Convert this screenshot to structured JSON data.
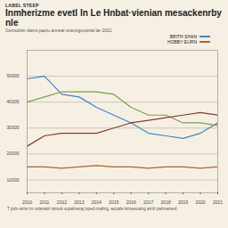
{
  "chart_data": {
    "type": "line",
    "label": "LABEL STEEP",
    "title": "Inmherizme evetl ln Le Hnbat·vienian mesackenrby nle",
    "subtitle": "Gemudsin dams pactu anneal snanngcustrial lar 2021",
    "caption": "T pols wrire inr unlenatrr tanxsk sopalrrecaj ixped nnaling, aucaile kinoesuaing arrdr parimarsed.",
    "x": [
      2010,
      2011,
      2012,
      2013,
      2014,
      2015,
      2016,
      2017,
      2018,
      2019,
      2020,
      2021
    ],
    "xlim": [
      2010,
      2021
    ],
    "xticks": [
      2010,
      2011,
      2012,
      2013,
      2014,
      2015,
      2016,
      2017,
      2018,
      2019,
      2020,
      2021
    ],
    "ylim": [
      5000,
      60000
    ],
    "yticks": [
      10000,
      20000,
      30000,
      40000,
      50000
    ],
    "grid": true,
    "legend": "top-right",
    "series": [
      {
        "name": "BRITH SHAN",
        "color": "#3f86c4",
        "values": [
          49000,
          50000,
          43000,
          42000,
          38000,
          35000,
          32000,
          28000,
          27000,
          26000,
          28000,
          32000
        ]
      },
      {
        "color": "#7aa04a",
        "values": [
          40000,
          42000,
          44000,
          44000,
          44000,
          43000,
          38000,
          35000,
          35000,
          32000,
          32000,
          31000
        ]
      },
      {
        "color": "#8a3a2e",
        "values": [
          23000,
          27000,
          28000,
          28000,
          28000,
          30000,
          32000,
          33000,
          34000,
          35000,
          36000,
          35000
        ]
      },
      {
        "name": "HOBBY EURN",
        "color": "#b4622f",
        "values": [
          15000,
          15000,
          14500,
          15000,
          15500,
          15000,
          15000,
          14500,
          15000,
          15000,
          14500,
          15000
        ]
      }
    ]
  }
}
